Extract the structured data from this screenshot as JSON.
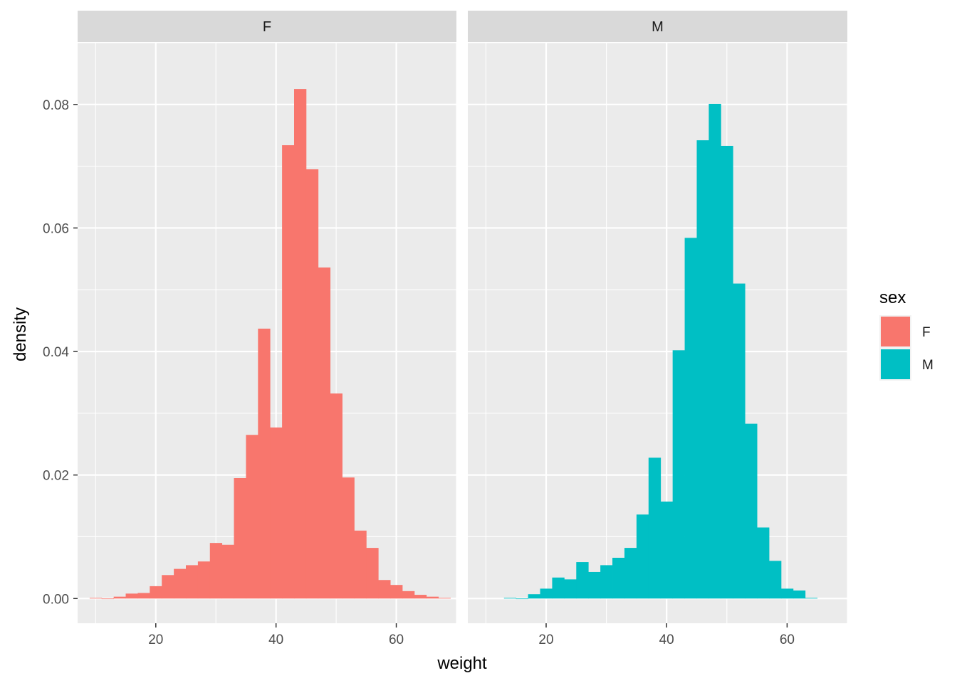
{
  "chart_data": {
    "type": "bar",
    "subtype": "faceted-histogram",
    "xlabel": "weight",
    "ylabel": "density",
    "xlim": [
      7,
      70
    ],
    "ylim": [
      -0.004,
      0.09
    ],
    "x_ticks": [
      20,
      40,
      60
    ],
    "x_tick_labels": [
      "20",
      "40",
      "60"
    ],
    "y_ticks": [
      0,
      0.02,
      0.04,
      0.06,
      0.08
    ],
    "y_tick_labels": [
      "0.00",
      "0.02",
      "0.04",
      "0.06",
      "0.08"
    ],
    "bin_width": 2,
    "grid": true,
    "legend": {
      "title": "sex",
      "position": "right",
      "entries": [
        {
          "label": "F",
          "color": "#F8766D"
        },
        {
          "label": "M",
          "color": "#00BFC4"
        }
      ]
    },
    "colors": {
      "panel_background": "#EBEBEB",
      "strip_background": "#D9D9D9",
      "grid": "#FFFFFF",
      "F": "#F8766D",
      "M": "#00BFC4"
    },
    "facets": [
      {
        "label": "F",
        "color": "#F8766D",
        "bins": [
          {
            "x0": 9,
            "x1": 11,
            "value": 0.0001
          },
          {
            "x0": 11,
            "x1": 13,
            "value": 0.0
          },
          {
            "x0": 13,
            "x1": 15,
            "value": 0.0003
          },
          {
            "x0": 15,
            "x1": 17,
            "value": 0.0008
          },
          {
            "x0": 17,
            "x1": 19,
            "value": 0.0009
          },
          {
            "x0": 19,
            "x1": 21,
            "value": 0.002
          },
          {
            "x0": 21,
            "x1": 23,
            "value": 0.0038
          },
          {
            "x0": 23,
            "x1": 25,
            "value": 0.0048
          },
          {
            "x0": 25,
            "x1": 27,
            "value": 0.0054
          },
          {
            "x0": 27,
            "x1": 29,
            "value": 0.006
          },
          {
            "x0": 29,
            "x1": 31,
            "value": 0.009
          },
          {
            "x0": 31,
            "x1": 33,
            "value": 0.0087
          },
          {
            "x0": 33,
            "x1": 35,
            "value": 0.0195
          },
          {
            "x0": 35,
            "x1": 37,
            "value": 0.0265
          },
          {
            "x0": 37,
            "x1": 39,
            "value": 0.0437
          },
          {
            "x0": 39,
            "x1": 41,
            "value": 0.0277
          },
          {
            "x0": 41,
            "x1": 43,
            "value": 0.0734
          },
          {
            "x0": 43,
            "x1": 45,
            "value": 0.0825
          },
          {
            "x0": 45,
            "x1": 47,
            "value": 0.0695
          },
          {
            "x0": 47,
            "x1": 49,
            "value": 0.0536
          },
          {
            "x0": 49,
            "x1": 51,
            "value": 0.0332
          },
          {
            "x0": 51,
            "x1": 53,
            "value": 0.0196
          },
          {
            "x0": 53,
            "x1": 55,
            "value": 0.011
          },
          {
            "x0": 55,
            "x1": 57,
            "value": 0.0082
          },
          {
            "x0": 57,
            "x1": 59,
            "value": 0.003
          },
          {
            "x0": 59,
            "x1": 61,
            "value": 0.0022
          },
          {
            "x0": 61,
            "x1": 63,
            "value": 0.0012
          },
          {
            "x0": 63,
            "x1": 65,
            "value": 0.0006
          },
          {
            "x0": 65,
            "x1": 67,
            "value": 0.0003
          },
          {
            "x0": 67,
            "x1": 69,
            "value": 0.0001
          }
        ]
      },
      {
        "label": "M",
        "color": "#00BFC4",
        "bins": [
          {
            "x0": 13,
            "x1": 15,
            "value": 0.0001
          },
          {
            "x0": 15,
            "x1": 17,
            "value": 0.0
          },
          {
            "x0": 17,
            "x1": 19,
            "value": 0.0007
          },
          {
            "x0": 19,
            "x1": 21,
            "value": 0.0016
          },
          {
            "x0": 21,
            "x1": 23,
            "value": 0.0034
          },
          {
            "x0": 23,
            "x1": 25,
            "value": 0.0031
          },
          {
            "x0": 25,
            "x1": 27,
            "value": 0.0059
          },
          {
            "x0": 27,
            "x1": 29,
            "value": 0.0043
          },
          {
            "x0": 29,
            "x1": 31,
            "value": 0.0054
          },
          {
            "x0": 31,
            "x1": 33,
            "value": 0.0066
          },
          {
            "x0": 33,
            "x1": 35,
            "value": 0.0082
          },
          {
            "x0": 35,
            "x1": 37,
            "value": 0.0136
          },
          {
            "x0": 37,
            "x1": 39,
            "value": 0.0228
          },
          {
            "x0": 39,
            "x1": 41,
            "value": 0.0157
          },
          {
            "x0": 41,
            "x1": 43,
            "value": 0.0402
          },
          {
            "x0": 43,
            "x1": 45,
            "value": 0.0584
          },
          {
            "x0": 45,
            "x1": 47,
            "value": 0.0742
          },
          {
            "x0": 47,
            "x1": 49,
            "value": 0.0801
          },
          {
            "x0": 49,
            "x1": 51,
            "value": 0.0733
          },
          {
            "x0": 51,
            "x1": 53,
            "value": 0.051
          },
          {
            "x0": 53,
            "x1": 55,
            "value": 0.0283
          },
          {
            "x0": 55,
            "x1": 57,
            "value": 0.0115
          },
          {
            "x0": 57,
            "x1": 59,
            "value": 0.0061
          },
          {
            "x0": 59,
            "x1": 61,
            "value": 0.0016
          },
          {
            "x0": 61,
            "x1": 63,
            "value": 0.0013
          },
          {
            "x0": 63,
            "x1": 65,
            "value": 0.0001
          }
        ]
      }
    ]
  }
}
